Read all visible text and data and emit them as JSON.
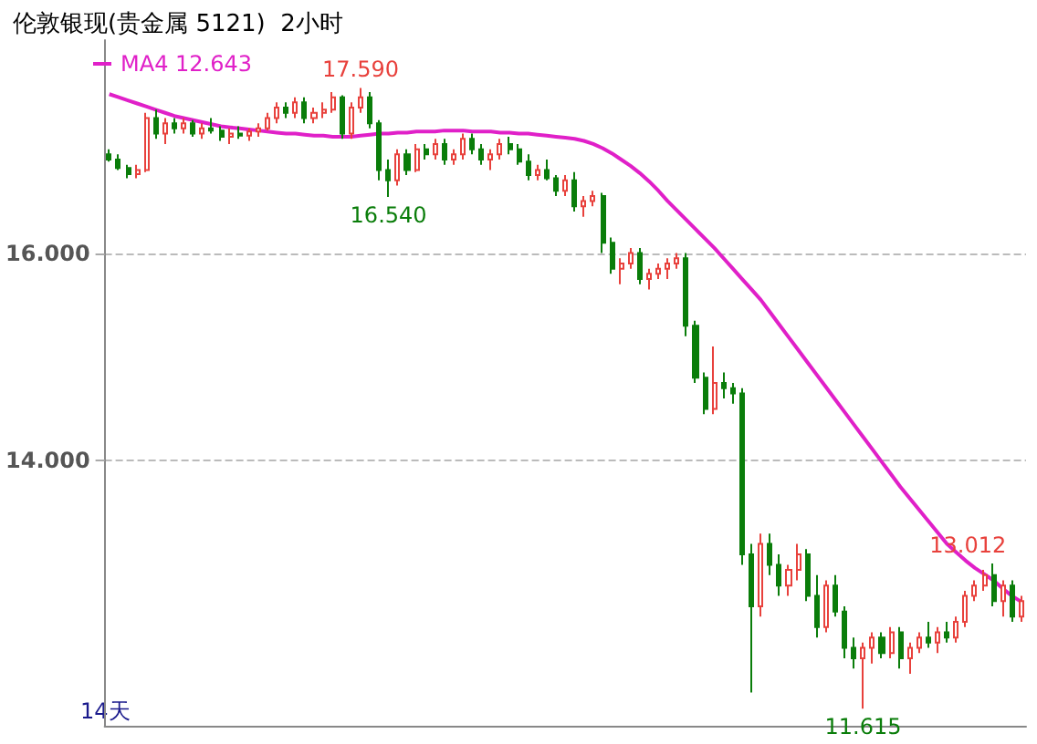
{
  "chart_data": {
    "type": "candlestick",
    "title": "伦敦银现(贵金属 5121)  2小时",
    "categories": [
      null,
      null,
      null,
      null,
      null,
      null,
      null,
      null,
      null,
      null,
      null,
      null,
      null,
      null,
      null,
      null,
      null,
      null,
      null,
      null,
      null,
      null,
      null,
      null,
      null,
      null,
      null,
      null,
      null,
      null,
      null,
      null,
      null,
      null,
      null,
      null,
      null,
      null,
      null,
      null,
      null,
      null,
      null,
      null,
      null,
      null,
      null,
      null,
      null,
      null,
      null,
      null,
      null,
      null,
      null,
      null,
      null,
      null,
      null,
      null,
      null,
      null,
      null,
      null,
      null,
      null,
      null,
      null,
      null,
      null,
      null,
      null,
      null,
      null,
      null,
      null,
      null,
      null,
      null,
      null,
      null,
      null,
      null,
      null,
      null,
      null,
      null,
      null,
      null,
      null,
      null,
      null,
      null,
      null,
      null,
      null,
      null,
      null,
      null
    ],
    "series": [
      {
        "type": "candlestick",
        "colors": [
          "#0a7d0a",
          "#0a7d0a",
          "#0a7d0a",
          "#e8413c",
          "#e8413c",
          "#0a7d0a",
          "#e8413c",
          "#0a7d0a",
          "#e8413c",
          "#0a7d0a",
          "#e8413c",
          "#0a7d0a",
          "#0a7d0a",
          "#e8413c",
          "#0a7d0a",
          "#e8413c",
          "#e8413c",
          "#e8413c",
          "#e8413c",
          "#0a7d0a",
          "#e8413c",
          "#0a7d0a",
          "#e8413c",
          "#e8413c",
          "#e8413c",
          "#0a7d0a",
          "#e8413c",
          "#e8413c",
          "#0a7d0a",
          "#0a7d0a",
          "#0a7d0a",
          "#e8413c",
          "#0a7d0a",
          "#e8413c",
          "#0a7d0a",
          "#e8413c",
          "#0a7d0a",
          "#e8413c",
          "#e8413c",
          "#0a7d0a",
          "#0a7d0a",
          "#e8413c",
          "#e8413c",
          "#0a7d0a",
          "#0a7d0a",
          "#0a7d0a",
          "#e8413c",
          "#0a7d0a",
          "#0a7d0a",
          "#e8413c",
          "#0a7d0a",
          "#e8413c",
          "#e8413c",
          "#0a7d0a",
          "#0a7d0a",
          "#e8413c",
          "#e8413c",
          "#0a7d0a",
          "#e8413c",
          "#e8413c",
          "#e8413c",
          "#e8413c",
          "#0a7d0a",
          "#0a7d0a",
          "#0a7d0a",
          "#e8413c",
          "#0a7d0a",
          "#0a7d0a",
          "#0a7d0a",
          "#0a7d0a",
          "#e8413c",
          "#0a7d0a",
          "#0a7d0a",
          "#e8413c",
          "#e8413c",
          "#0a7d0a",
          "#0a7d0a",
          "#e8413c",
          "#0a7d0a",
          "#0a7d0a",
          "#0a7d0a",
          "#e8413c",
          "#e8413c",
          "#0a7d0a",
          "#e8413c",
          "#0a7d0a",
          "#e8413c",
          "#e8413c",
          "#0a7d0a",
          "#e8413c",
          "#0a7d0a",
          "#e8413c",
          "#e8413c",
          "#e8413c",
          "#e8413c",
          "#0a7d0a",
          "#e8413c",
          "#0a7d0a",
          "#e8413c"
        ],
        "ohlc": [
          [
            16.95,
            17.0,
            16.88,
            16.9
          ],
          [
            16.9,
            16.95,
            16.8,
            16.82
          ],
          [
            16.82,
            16.85,
            16.72,
            16.76
          ],
          [
            16.76,
            16.85,
            16.72,
            16.8
          ],
          [
            16.8,
            17.35,
            16.78,
            17.3
          ],
          [
            17.3,
            17.38,
            17.1,
            17.15
          ],
          [
            17.15,
            17.3,
            17.05,
            17.25
          ],
          [
            17.25,
            17.3,
            17.15,
            17.2
          ],
          [
            17.2,
            17.3,
            17.15,
            17.25
          ],
          [
            17.25,
            17.28,
            17.12,
            17.15
          ],
          [
            17.15,
            17.25,
            17.1,
            17.2
          ],
          [
            17.2,
            17.3,
            17.15,
            17.18
          ],
          [
            17.18,
            17.22,
            17.08,
            17.12
          ],
          [
            17.12,
            17.2,
            17.05,
            17.15
          ],
          [
            17.15,
            17.22,
            17.1,
            17.13
          ],
          [
            17.13,
            17.2,
            17.08,
            17.17
          ],
          [
            17.17,
            17.25,
            17.12,
            17.2
          ],
          [
            17.2,
            17.35,
            17.18,
            17.3
          ],
          [
            17.3,
            17.45,
            17.25,
            17.4
          ],
          [
            17.4,
            17.45,
            17.3,
            17.35
          ],
          [
            17.35,
            17.5,
            17.3,
            17.45
          ],
          [
            17.45,
            17.5,
            17.25,
            17.3
          ],
          [
            17.3,
            17.4,
            17.25,
            17.35
          ],
          [
            17.35,
            17.45,
            17.3,
            17.38
          ],
          [
            17.38,
            17.55,
            17.35,
            17.5
          ],
          [
            17.5,
            17.52,
            17.1,
            17.15
          ],
          [
            17.15,
            17.45,
            17.1,
            17.4
          ],
          [
            17.4,
            17.59,
            17.35,
            17.5
          ],
          [
            17.5,
            17.55,
            17.2,
            17.25
          ],
          [
            17.25,
            17.28,
            16.7,
            16.8
          ],
          [
            16.8,
            16.9,
            16.54,
            16.7
          ],
          [
            16.7,
            17.0,
            16.65,
            16.95
          ],
          [
            16.95,
            17.0,
            16.75,
            16.8
          ],
          [
            16.8,
            17.05,
            16.78,
            17.0
          ],
          [
            17.0,
            17.05,
            16.9,
            16.95
          ],
          [
            16.95,
            17.1,
            16.9,
            17.05
          ],
          [
            17.05,
            17.1,
            16.85,
            16.9
          ],
          [
            16.9,
            17.0,
            16.85,
            16.95
          ],
          [
            16.95,
            17.15,
            16.9,
            17.1
          ],
          [
            17.1,
            17.15,
            16.95,
            17.0
          ],
          [
            17.0,
            17.05,
            16.85,
            16.9
          ],
          [
            16.9,
            17.0,
            16.8,
            16.95
          ],
          [
            16.95,
            17.1,
            16.9,
            17.05
          ],
          [
            17.05,
            17.12,
            16.95,
            17.0
          ],
          [
            17.0,
            17.05,
            16.85,
            16.88
          ],
          [
            16.88,
            16.95,
            16.7,
            16.75
          ],
          [
            16.75,
            16.85,
            16.7,
            16.8
          ],
          [
            16.8,
            16.9,
            16.7,
            16.72
          ],
          [
            16.72,
            16.75,
            16.55,
            16.6
          ],
          [
            16.6,
            16.75,
            16.55,
            16.7
          ],
          [
            16.7,
            16.78,
            16.4,
            16.45
          ],
          [
            16.45,
            16.55,
            16.35,
            16.5
          ],
          [
            16.5,
            16.6,
            16.45,
            16.55
          ],
          [
            16.55,
            16.58,
            16.0,
            16.1
          ],
          [
            16.1,
            16.15,
            15.8,
            15.85
          ],
          [
            15.85,
            15.95,
            15.7,
            15.9
          ],
          [
            15.9,
            16.05,
            15.85,
            16.0
          ],
          [
            16.0,
            16.05,
            15.7,
            15.75
          ],
          [
            15.75,
            15.85,
            15.65,
            15.8
          ],
          [
            15.8,
            15.9,
            15.75,
            15.85
          ],
          [
            15.85,
            15.95,
            15.75,
            15.9
          ],
          [
            15.9,
            16.0,
            15.85,
            15.95
          ],
          [
            15.95,
            16.0,
            15.2,
            15.3
          ],
          [
            15.3,
            15.35,
            14.75,
            14.8
          ],
          [
            14.8,
            14.85,
            14.45,
            14.5
          ],
          [
            14.5,
            15.1,
            14.45,
            14.75
          ],
          [
            14.75,
            14.85,
            14.6,
            14.7
          ],
          [
            14.7,
            14.75,
            14.55,
            14.65
          ],
          [
            14.65,
            14.7,
            13.0,
            13.1
          ],
          [
            13.1,
            13.2,
            11.77,
            12.6
          ],
          [
            12.6,
            13.3,
            12.5,
            13.2
          ],
          [
            13.2,
            13.3,
            12.9,
            13.0
          ],
          [
            13.0,
            13.1,
            12.7,
            12.8
          ],
          [
            12.8,
            13.0,
            12.7,
            12.95
          ],
          [
            12.95,
            13.2,
            12.85,
            13.1
          ],
          [
            13.1,
            13.15,
            12.65,
            12.7
          ],
          [
            12.7,
            12.9,
            12.3,
            12.4
          ],
          [
            12.4,
            12.85,
            12.35,
            12.8
          ],
          [
            12.8,
            12.9,
            12.5,
            12.55
          ],
          [
            12.55,
            12.6,
            12.1,
            12.2
          ],
          [
            12.2,
            12.3,
            12.0,
            12.1
          ],
          [
            12.1,
            12.25,
            11.615,
            12.2
          ],
          [
            12.2,
            12.35,
            12.05,
            12.3
          ],
          [
            12.3,
            12.35,
            12.1,
            12.15
          ],
          [
            12.15,
            12.4,
            12.1,
            12.35
          ],
          [
            12.35,
            12.4,
            12.0,
            12.1
          ],
          [
            12.1,
            12.25,
            11.95,
            12.2
          ],
          [
            12.2,
            12.35,
            12.15,
            12.3
          ],
          [
            12.3,
            12.45,
            12.2,
            12.25
          ],
          [
            12.25,
            12.4,
            12.15,
            12.35
          ],
          [
            12.35,
            12.45,
            12.25,
            12.3
          ],
          [
            12.3,
            12.5,
            12.25,
            12.45
          ],
          [
            12.45,
            12.75,
            12.4,
            12.7
          ],
          [
            12.7,
            12.85,
            12.65,
            12.8
          ],
          [
            12.8,
            12.95,
            12.75,
            12.9
          ],
          [
            12.9,
            13.012,
            12.6,
            12.65
          ],
          [
            12.65,
            12.85,
            12.5,
            12.8
          ],
          [
            12.8,
            12.85,
            12.45,
            12.5
          ],
          [
            12.5,
            12.7,
            12.45,
            12.65
          ]
        ]
      },
      {
        "type": "line",
        "name": "MA4 12.643",
        "color": "#e020c8",
        "values": [
          17.53,
          17.5,
          17.47,
          17.44,
          17.41,
          17.38,
          17.35,
          17.32,
          17.3,
          17.28,
          17.26,
          17.24,
          17.22,
          17.21,
          17.2,
          17.19,
          17.18,
          17.17,
          17.16,
          17.15,
          17.15,
          17.14,
          17.13,
          17.13,
          17.12,
          17.12,
          17.12,
          17.13,
          17.14,
          17.15,
          17.15,
          17.16,
          17.16,
          17.17,
          17.17,
          17.17,
          17.18,
          17.18,
          17.18,
          17.17,
          17.17,
          17.17,
          17.16,
          17.16,
          17.15,
          17.15,
          17.14,
          17.13,
          17.12,
          17.11,
          17.1,
          17.08,
          17.05,
          17.01,
          16.96,
          16.9,
          16.84,
          16.77,
          16.69,
          16.6,
          16.5,
          16.41,
          16.32,
          16.23,
          16.14,
          16.05,
          15.95,
          15.85,
          15.75,
          15.65,
          15.55,
          15.43,
          15.31,
          15.19,
          15.07,
          14.95,
          14.83,
          14.71,
          14.59,
          14.47,
          14.35,
          14.23,
          14.11,
          13.99,
          13.87,
          13.75,
          13.64,
          13.53,
          13.42,
          13.31,
          13.2,
          13.12,
          13.04,
          12.97,
          12.91,
          12.85,
          12.77,
          12.7,
          12.643
        ]
      }
    ],
    "ylim": [
      11.45,
      18.05
    ],
    "yticks": [
      {
        "value": 14,
        "label": "14.000"
      },
      {
        "value": 16,
        "label": "16.000"
      }
    ],
    "grid": "y",
    "legend": "top left",
    "tick_labels": "y",
    "annotations": [
      {
        "text": "17.590",
        "y": 17.59
      },
      {
        "text": "16.540",
        "y": 16.54
      },
      {
        "text": "13.012",
        "y": 13.012
      },
      {
        "text": "11.615",
        "y": 11.615
      },
      "14天"
    ]
  }
}
